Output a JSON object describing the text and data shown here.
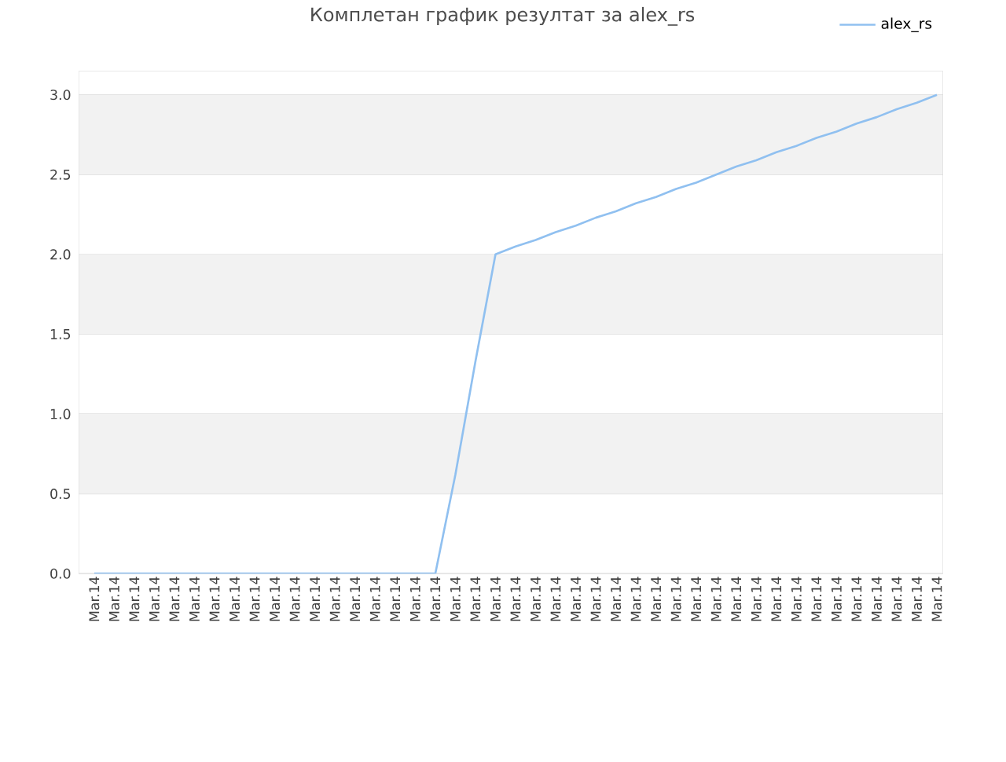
{
  "chart_data": {
    "type": "line",
    "title": "Комплетан график резултат за alex_rs",
    "categories": [
      "Mar.14",
      "Mar.14",
      "Mar.14",
      "Mar.14",
      "Mar.14",
      "Mar.14",
      "Mar.14",
      "Mar.14",
      "Mar.14",
      "Mar.14",
      "Mar.14",
      "Mar.14",
      "Mar.14",
      "Mar.14",
      "Mar.14",
      "Mar.14",
      "Mar.14",
      "Mar.14",
      "Mar.14",
      "Mar.14",
      "Mar.14",
      "Mar.14",
      "Mar.14",
      "Mar.14",
      "Mar.14",
      "Mar.14",
      "Mar.14",
      "Mar.14",
      "Mar.14",
      "Mar.14",
      "Mar.14",
      "Mar.14",
      "Mar.14",
      "Mar.14",
      "Mar.14",
      "Mar.14",
      "Mar.14",
      "Mar.14",
      "Mar.14",
      "Mar.14",
      "Mar.14",
      "Mar.14",
      "Mar.14"
    ],
    "series": [
      {
        "name": "alex_rs",
        "color": "#90c0f0",
        "values": [
          0,
          0,
          0,
          0,
          0,
          0,
          0,
          0,
          0,
          0,
          0,
          0,
          0,
          0,
          0,
          0,
          0,
          0,
          0.62,
          1.33,
          2.0,
          2.05,
          2.09,
          2.14,
          2.18,
          2.23,
          2.27,
          2.32,
          2.36,
          2.41,
          2.45,
          2.5,
          2.55,
          2.59,
          2.64,
          2.68,
          2.73,
          2.77,
          2.82,
          2.86,
          2.91,
          2.95,
          3.0
        ]
      }
    ],
    "ylim": [
      0,
      3.15
    ],
    "yticks": [
      {
        "value": 0,
        "label": "0.0"
      },
      {
        "value": 0.5,
        "label": "0.5"
      },
      {
        "value": 1,
        "label": "1.0"
      },
      {
        "value": 1.5,
        "label": "1.5"
      },
      {
        "value": 2,
        "label": "2.0"
      },
      {
        "value": 2.5,
        "label": "2.5"
      },
      {
        "value": 3,
        "label": "3.0"
      }
    ],
    "grid": "y",
    "legend": "top right",
    "marker": "none",
    "line_style": "solid"
  }
}
